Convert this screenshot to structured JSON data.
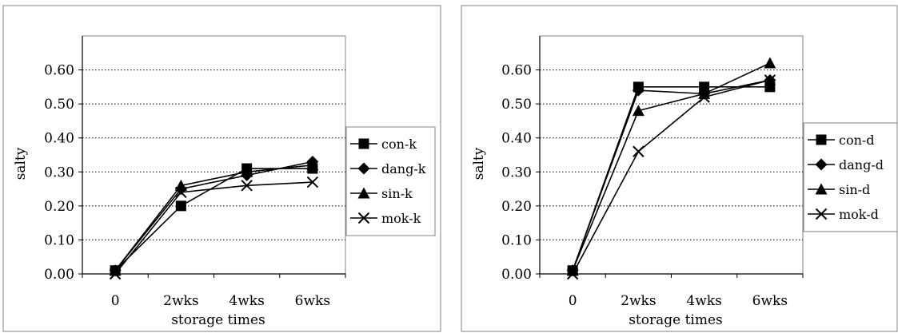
{
  "chart_data": [
    {
      "type": "line",
      "title": "",
      "xlabel": "storage times",
      "ylabel": "salty",
      "categories": [
        "0",
        "2wks",
        "4wks",
        "6wks"
      ],
      "ylim": [
        0,
        0.6
      ],
      "yticks": [
        "0.00",
        "0.10",
        "0.20",
        "0.30",
        "0.40",
        "0.50",
        "0.60"
      ],
      "grid": "horizontal dotted",
      "legend_position": "right",
      "series": [
        {
          "name": "con-k",
          "marker": "square",
          "values": [
            0.01,
            0.2,
            0.31,
            0.31
          ]
        },
        {
          "name": "dang-k",
          "marker": "diamond",
          "values": [
            0.01,
            0.25,
            0.29,
            0.33
          ]
        },
        {
          "name": "sin-k",
          "marker": "triangle",
          "values": [
            0.01,
            0.26,
            0.3,
            0.32
          ]
        },
        {
          "name": "mok-k",
          "marker": "x",
          "values": [
            0.0,
            0.24,
            0.26,
            0.27
          ]
        }
      ]
    },
    {
      "type": "line",
      "title": "",
      "xlabel": "storage times",
      "ylabel": "salty",
      "categories": [
        "0",
        "2wks",
        "4wks",
        "6wks"
      ],
      "ylim": [
        0,
        0.6
      ],
      "yticks": [
        "0.00",
        "0.10",
        "0.20",
        "0.30",
        "0.40",
        "0.50",
        "0.60"
      ],
      "grid": "horizontal dotted",
      "legend_position": "right",
      "series": [
        {
          "name": "con-d",
          "marker": "square",
          "values": [
            0.01,
            0.55,
            0.55,
            0.55
          ]
        },
        {
          "name": "dang-d",
          "marker": "diamond",
          "values": [
            0.01,
            0.54,
            0.53,
            0.57
          ]
        },
        {
          "name": "sin-d",
          "marker": "triangle",
          "values": [
            0.01,
            0.48,
            0.53,
            0.62
          ]
        },
        {
          "name": "mok-d",
          "marker": "x",
          "values": [
            0.0,
            0.36,
            0.52,
            0.57
          ]
        }
      ]
    }
  ]
}
